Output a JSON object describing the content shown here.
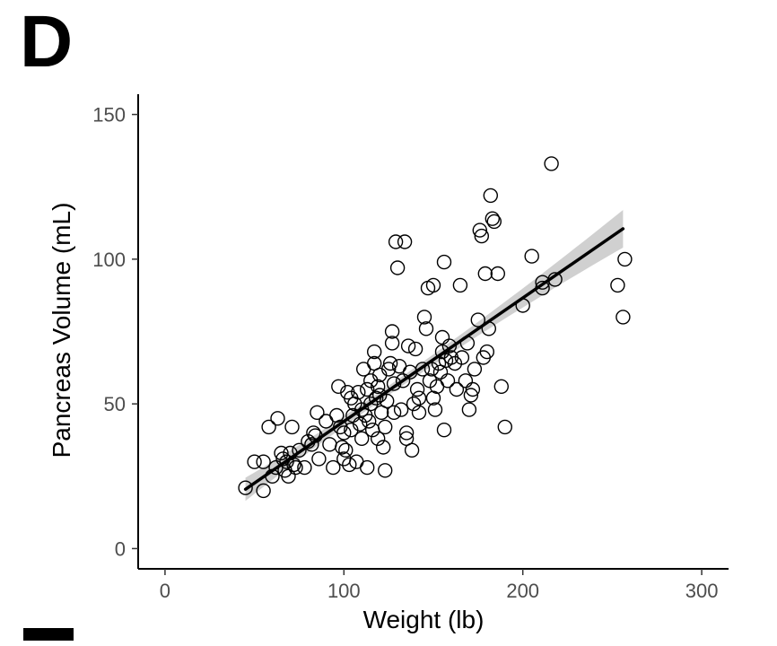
{
  "panel": {
    "letter": "D"
  },
  "chart_data": {
    "type": "scatter",
    "title": "",
    "xlabel": "Weight (lb)",
    "ylabel": "Pancreas Volume (mL)",
    "xlim": [
      -15,
      315
    ],
    "ylim": [
      -7,
      157
    ],
    "xticks": [
      0,
      100,
      200,
      300
    ],
    "yticks": [
      0,
      50,
      100,
      150
    ],
    "grid": false,
    "legend": "none",
    "colors": {
      "point_stroke": "#000000",
      "line": "#000000",
      "band": "#c8c8c8"
    },
    "fit": {
      "method": "linear regression with confidence band",
      "x": [
        45,
        256
      ],
      "y": [
        20.5,
        110.5
      ],
      "band_halfwidth": [
        4.0,
        6.5
      ]
    },
    "points": [
      [
        45,
        21
      ],
      [
        55,
        20
      ],
      [
        55,
        30
      ],
      [
        50,
        30
      ],
      [
        58,
        42
      ],
      [
        60,
        25
      ],
      [
        62,
        28
      ],
      [
        63,
        45
      ],
      [
        65,
        33
      ],
      [
        66,
        31
      ],
      [
        67,
        27
      ],
      [
        68,
        30
      ],
      [
        69,
        25
      ],
      [
        70,
        33
      ],
      [
        71,
        42
      ],
      [
        72,
        29
      ],
      [
        73,
        28
      ],
      [
        75,
        34
      ],
      [
        78,
        28
      ],
      [
        80,
        37
      ],
      [
        82,
        36
      ],
      [
        83,
        40
      ],
      [
        84,
        39
      ],
      [
        85,
        47
      ],
      [
        86,
        31
      ],
      [
        90,
        44
      ],
      [
        92,
        36
      ],
      [
        94,
        28
      ],
      [
        96,
        46
      ],
      [
        97,
        56
      ],
      [
        98,
        42
      ],
      [
        99,
        35
      ],
      [
        100,
        31
      ],
      [
        100,
        40
      ],
      [
        101,
        34
      ],
      [
        102,
        54
      ],
      [
        103,
        29
      ],
      [
        104,
        41
      ],
      [
        104,
        52
      ],
      [
        105,
        46
      ],
      [
        106,
        50
      ],
      [
        107,
        30
      ],
      [
        108,
        54
      ],
      [
        109,
        43
      ],
      [
        110,
        38
      ],
      [
        110,
        48
      ],
      [
        111,
        62
      ],
      [
        112,
        46
      ],
      [
        113,
        28
      ],
      [
        113,
        55
      ],
      [
        114,
        44
      ],
      [
        115,
        50
      ],
      [
        115,
        58
      ],
      [
        116,
        41
      ],
      [
        117,
        64
      ],
      [
        117,
        68
      ],
      [
        118,
        52
      ],
      [
        119,
        38
      ],
      [
        119,
        56
      ],
      [
        120,
        53
      ],
      [
        120,
        60
      ],
      [
        121,
        47
      ],
      [
        122,
        35
      ],
      [
        123,
        42
      ],
      [
        123,
        27
      ],
      [
        124,
        51
      ],
      [
        125,
        62
      ],
      [
        126,
        64
      ],
      [
        127,
        75
      ],
      [
        127,
        71
      ],
      [
        128,
        47
      ],
      [
        128,
        57
      ],
      [
        129,
        106
      ],
      [
        130,
        97
      ],
      [
        131,
        63
      ],
      [
        132,
        48
      ],
      [
        133,
        58
      ],
      [
        134,
        106
      ],
      [
        135,
        40
      ],
      [
        135,
        38
      ],
      [
        136,
        70
      ],
      [
        137,
        61
      ],
      [
        138,
        34
      ],
      [
        139,
        50
      ],
      [
        140,
        69
      ],
      [
        141,
        55
      ],
      [
        142,
        47
      ],
      [
        142,
        52
      ],
      [
        144,
        62
      ],
      [
        145,
        80
      ],
      [
        146,
        76
      ],
      [
        147,
        90
      ],
      [
        148,
        58
      ],
      [
        149,
        62
      ],
      [
        150,
        91
      ],
      [
        150,
        52
      ],
      [
        151,
        48
      ],
      [
        152,
        56
      ],
      [
        153,
        64
      ],
      [
        154,
        61
      ],
      [
        155,
        68
      ],
      [
        155,
        73
      ],
      [
        156,
        99
      ],
      [
        156,
        41
      ],
      [
        157,
        65
      ],
      [
        158,
        58
      ],
      [
        159,
        70
      ],
      [
        160,
        66
      ],
      [
        162,
        64
      ],
      [
        163,
        55
      ],
      [
        165,
        91
      ],
      [
        166,
        66
      ],
      [
        168,
        58
      ],
      [
        169,
        71
      ],
      [
        170,
        48
      ],
      [
        171,
        53
      ],
      [
        172,
        55
      ],
      [
        173,
        62
      ],
      [
        175,
        79
      ],
      [
        176,
        110
      ],
      [
        177,
        108
      ],
      [
        178,
        66
      ],
      [
        179,
        95
      ],
      [
        180,
        68
      ],
      [
        181,
        76
      ],
      [
        182,
        122
      ],
      [
        183,
        114
      ],
      [
        184,
        113
      ],
      [
        186,
        95
      ],
      [
        188,
        56
      ],
      [
        190,
        42
      ],
      [
        200,
        84
      ],
      [
        205,
        101
      ],
      [
        211,
        92
      ],
      [
        211,
        90
      ],
      [
        216,
        133
      ],
      [
        218,
        93
      ],
      [
        253,
        91
      ],
      [
        256,
        80
      ],
      [
        257,
        100
      ]
    ]
  }
}
